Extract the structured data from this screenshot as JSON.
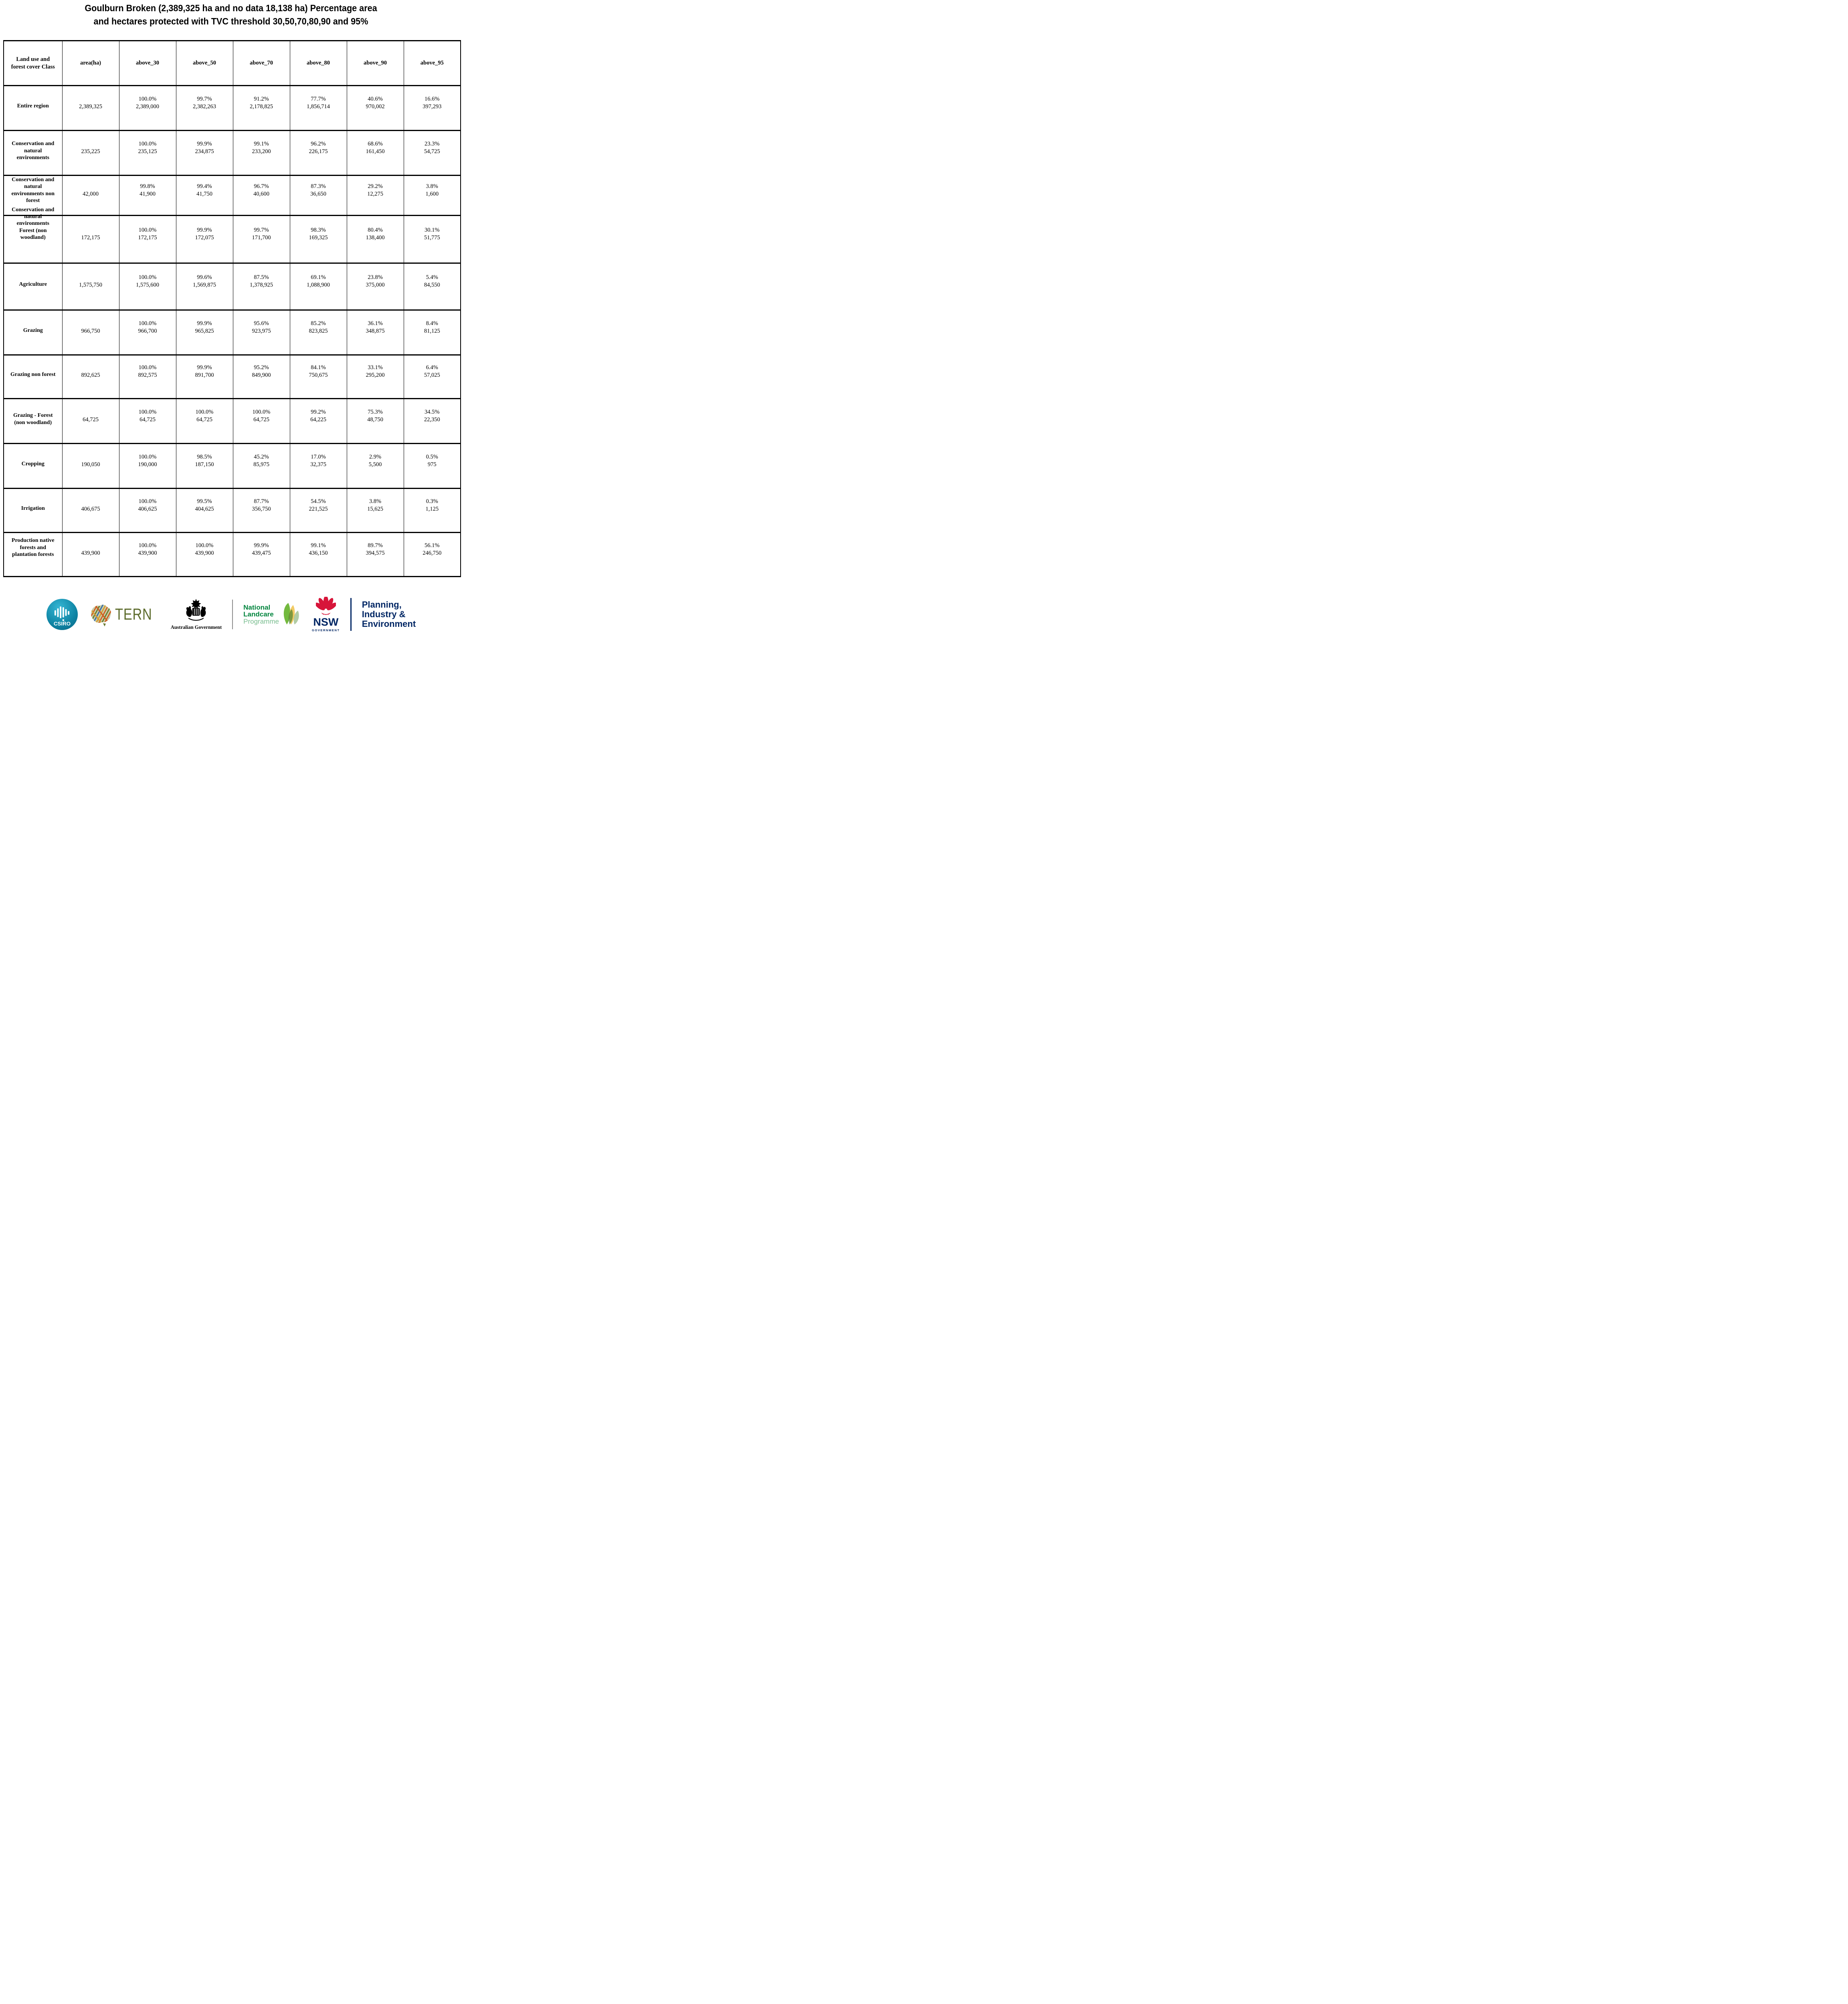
{
  "title": {
    "line1": "Goulburn Broken (2,389,325 ha and no data 18,138 ha) Percentage area",
    "line2": "and hectares protected with TVC threshold 30,50,70,80,90 and 95%"
  },
  "table": {
    "keys": [
      "class",
      "area_ha",
      "above_30",
      "above_50",
      "above_70",
      "above_80",
      "above_90",
      "above_95"
    ],
    "columns": [
      "Land use and forest cover Class",
      "area(ha)",
      "above_30",
      "above_50",
      "above_70",
      "above_80",
      "above_90",
      "above_95"
    ],
    "rows": [
      {
        "label": "Entire region",
        "area": "2,389,325",
        "cells": [
          [
            "100.0%",
            "2,389,000"
          ],
          [
            "99.7%",
            "2,382,263"
          ],
          [
            "91.2%",
            "2,178,825"
          ],
          [
            "77.7%",
            "1,856,714"
          ],
          [
            "40.6%",
            "970,002"
          ],
          [
            "16.6%",
            "397,293"
          ]
        ]
      },
      {
        "label": "Conservation and natural environments",
        "area": "235,225",
        "cells": [
          [
            "100.0%",
            "235,125"
          ],
          [
            "99.9%",
            "234,875"
          ],
          [
            "99.1%",
            "233,200"
          ],
          [
            "96.2%",
            "226,175"
          ],
          [
            "68.6%",
            "161,450"
          ],
          [
            "23.3%",
            "54,725"
          ]
        ]
      },
      {
        "label": "Conservation and natural environments non forest",
        "area": "42,000",
        "cells": [
          [
            "99.8%",
            "41,900"
          ],
          [
            "99.4%",
            "41,750"
          ],
          [
            "96.7%",
            "40,600"
          ],
          [
            "87.3%",
            "36,650"
          ],
          [
            "29.2%",
            "12,275"
          ],
          [
            "3.8%",
            "1,600"
          ]
        ]
      },
      {
        "label": "Conservation and natural environments Forest (non woodland)",
        "area": "172,175",
        "cells": [
          [
            "100.0%",
            "172,175"
          ],
          [
            "99.9%",
            "172,075"
          ],
          [
            "99.7%",
            "171,700"
          ],
          [
            "98.3%",
            "169,325"
          ],
          [
            "80.4%",
            "138,400"
          ],
          [
            "30.1%",
            "51,775"
          ]
        ]
      },
      {
        "label": "Agriculture",
        "area": "1,575,750",
        "cells": [
          [
            "100.0%",
            "1,575,600"
          ],
          [
            "99.6%",
            "1,569,875"
          ],
          [
            "87.5%",
            "1,378,925"
          ],
          [
            "69.1%",
            "1,088,900"
          ],
          [
            "23.8%",
            "375,000"
          ],
          [
            "5.4%",
            "84,550"
          ]
        ]
      },
      {
        "label": "Grazing",
        "area": "966,750",
        "cells": [
          [
            "100.0%",
            "966,700"
          ],
          [
            "99.9%",
            "965,825"
          ],
          [
            "95.6%",
            "923,975"
          ],
          [
            "85.2%",
            "823,825"
          ],
          [
            "36.1%",
            "348,875"
          ],
          [
            "8.4%",
            "81,125"
          ]
        ]
      },
      {
        "label": "Grazing non forest",
        "area": "892,625",
        "cells": [
          [
            "100.0%",
            "892,575"
          ],
          [
            "99.9%",
            "891,700"
          ],
          [
            "95.2%",
            "849,900"
          ],
          [
            "84.1%",
            "750,675"
          ],
          [
            "33.1%",
            "295,200"
          ],
          [
            "6.4%",
            "57,025"
          ]
        ]
      },
      {
        "label": "Grazing - Forest (non woodland)",
        "area": "64,725",
        "cells": [
          [
            "100.0%",
            "64,725"
          ],
          [
            "100.0%",
            "64,725"
          ],
          [
            "100.0%",
            "64,725"
          ],
          [
            "99.2%",
            "64,225"
          ],
          [
            "75.3%",
            "48,750"
          ],
          [
            "34.5%",
            "22,350"
          ]
        ]
      },
      {
        "label": "Cropping",
        "area": "190,050",
        "cells": [
          [
            "100.0%",
            "190,000"
          ],
          [
            "98.5%",
            "187,150"
          ],
          [
            "45.2%",
            "85,975"
          ],
          [
            "17.0%",
            "32,375"
          ],
          [
            "2.9%",
            "5,500"
          ],
          [
            "0.5%",
            "975"
          ]
        ]
      },
      {
        "label": "Irrigation",
        "area": "406,675",
        "cells": [
          [
            "100.0%",
            "406,625"
          ],
          [
            "99.5%",
            "404,625"
          ],
          [
            "87.7%",
            "356,750"
          ],
          [
            "54.5%",
            "221,525"
          ],
          [
            "3.8%",
            "15,625"
          ],
          [
            "0.3%",
            "1,125"
          ]
        ]
      },
      {
        "label": "Production native forests and plantation forests",
        "area": "439,900",
        "cells": [
          [
            "100.0%",
            "439,900"
          ],
          [
            "100.0%",
            "439,900"
          ],
          [
            "99.9%",
            "439,475"
          ],
          [
            "99.1%",
            "436,150"
          ],
          [
            "89.7%",
            "394,575"
          ],
          [
            "56.1%",
            "246,750"
          ]
        ]
      }
    ]
  },
  "footer": {
    "csiro": "CSIRO",
    "tern": "TERN",
    "australian_government": "Australian Government",
    "landcare": {
      "line1": "National",
      "line2": "Landcare",
      "line3": "Programme"
    },
    "nsw": {
      "abbr": "NSW",
      "label": "GOVERNMENT"
    },
    "agency": {
      "line1": "Planning,",
      "line2": "Industry &",
      "line3": "Environment"
    }
  },
  "colors": {
    "csiro_teal": "#0f85a5",
    "tern_olive": "#5c6b2b",
    "landcare_green": "#00843d",
    "landcare_light_green": "#79bd8f",
    "nsw_navy": "#002664",
    "waratah_red": "#d7153a"
  }
}
